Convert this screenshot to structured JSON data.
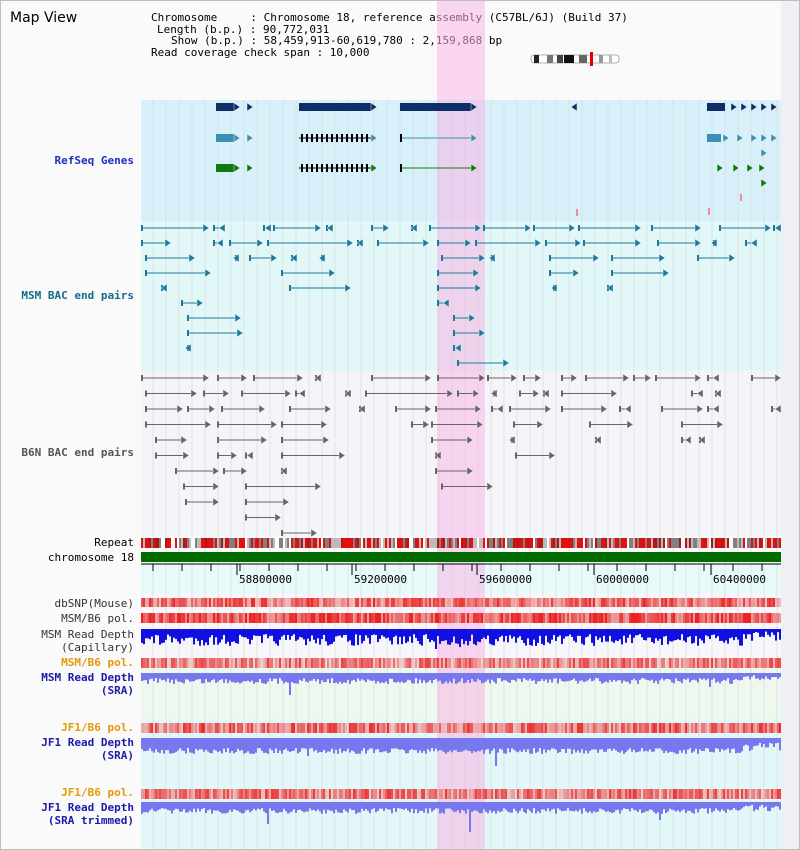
{
  "page": {
    "title": "Map View"
  },
  "info": {
    "chromosome": "Chromosome     : Chromosome 18, reference assembly (C57BL/6J) (Build 37)",
    "length": "Length (b.p.) : 90,772,031",
    "show": "Show (b.p.) : 58,459,913-60,619,780 : 2,159,868 bp",
    "coverage": "Read coverage check span : 10,000"
  },
  "tracks": {
    "refseq": "RefSeq Genes",
    "msm_bac": "MSM BAC end pairs",
    "b6n_bac": "B6N BAC end pairs",
    "repeat": "Repeat",
    "chromosome": "chromosome 18",
    "dbsnp": "dbSNP(Mouse)",
    "msm_b6_pol": "MSM/B6 pol.",
    "msm_depth_cap_1": "MSM Read Depth",
    "msm_depth_cap_2": "(Capillary)",
    "msm_b6_pol_2": "MSM/B6 pol.",
    "msm_depth_sra_1": "MSM Read Depth",
    "msm_depth_sra_2": "(SRA)",
    "jf1_b6_pol": "JF1/B6 pol.",
    "jf1_depth_sra_1": "JF1 Read Depth",
    "jf1_depth_sra_2": "(SRA)",
    "jf1_b6_pol_2": "JF1/B6 pol.",
    "jf1_depth_trim_1": "JF1 Read Depth",
    "jf1_depth_trim_2": "(SRA trimmed)"
  },
  "axis": {
    "ticks": [
      "58800000",
      "59200000",
      "59600000",
      "60000000",
      "60400000"
    ]
  },
  "colors": {
    "refseq_bg": "#d8f0fa",
    "msm_bg": "#e2f7f7",
    "b6n_bg": "#f4f5f9",
    "highlight": "#f7d2ee",
    "gene_dark": "#0d2f66",
    "gene_mid": "#3f8fb4",
    "gene_green": "#127a12",
    "msm_pair": "#1e7a9c",
    "b6n_pair": "#666666",
    "chromosome": "#006b00",
    "depth_cap": "#1010e0",
    "depth_sra": "#7777ee"
  }
}
